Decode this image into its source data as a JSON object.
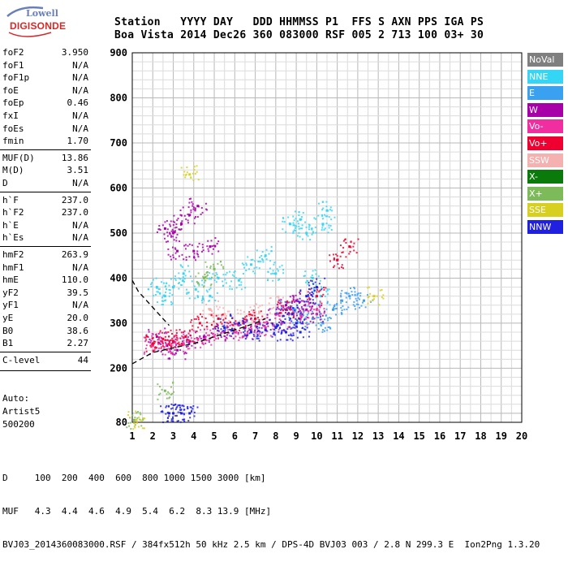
{
  "header": {
    "line1": "Station   YYYY DAY   DDD HHMMSS P1  FFS S AXN PPS IGA PS",
    "line2": "Boa Vista 2014 Dec26 360 083000 RSF 005 2 713 100 03+ 30"
  },
  "logo": {
    "top": "Lowell",
    "bottom": "DIGISONDE"
  },
  "params": [
    {
      "name": "foF2",
      "value": "3.950"
    },
    {
      "name": "foF1",
      "value": "N/A"
    },
    {
      "name": "foF1p",
      "value": "N/A"
    },
    {
      "name": "foE",
      "value": "N/A"
    },
    {
      "name": "foEp",
      "value": "0.46"
    },
    {
      "name": "fxI",
      "value": "N/A"
    },
    {
      "name": "foEs",
      "value": "N/A"
    },
    {
      "name": "fmin",
      "value": "1.70"
    },
    {
      "name": "MUF(D)",
      "value": "13.86"
    },
    {
      "name": "M(D)",
      "value": "3.51"
    },
    {
      "name": "D",
      "value": "N/A"
    },
    {
      "name": "h`F",
      "value": "237.0"
    },
    {
      "name": "h`F2",
      "value": "237.0"
    },
    {
      "name": "h`E",
      "value": "N/A"
    },
    {
      "name": "h`Es",
      "value": "N/A"
    },
    {
      "name": "hmF2",
      "value": "263.9"
    },
    {
      "name": "hmF1",
      "value": "N/A"
    },
    {
      "name": "hmE",
      "value": "110.0"
    },
    {
      "name": "yF2",
      "value": "39.5"
    },
    {
      "name": "yF1",
      "value": "N/A"
    },
    {
      "name": "yE",
      "value": "20.0"
    },
    {
      "name": "B0",
      "value": "38.6"
    },
    {
      "name": "B1",
      "value": "2.27"
    },
    {
      "name": "C-level",
      "value": "44"
    }
  ],
  "autoscaling": {
    "line1": "Auto:",
    "line2": "Artist5",
    "line3": "500200"
  },
  "legend": [
    {
      "label": "NoVal",
      "color": "#7f7f7f"
    },
    {
      "label": "NNE",
      "color": "#35d6f5"
    },
    {
      "label": "E",
      "color": "#3aa0f0"
    },
    {
      "label": "W",
      "color": "#a800a8"
    },
    {
      "label": "Vo-",
      "color": "#f02ea0"
    },
    {
      "label": "Vo+",
      "color": "#f00030"
    },
    {
      "label": "SSW",
      "color": "#f5b0b0"
    },
    {
      "label": "X-",
      "color": "#0a7a0a"
    },
    {
      "label": "X+",
      "color": "#7cba5a"
    },
    {
      "label": "SSE",
      "color": "#d8d020"
    },
    {
      "label": "NNW",
      "color": "#2020e0"
    }
  ],
  "footer": {
    "d_row": "D     100  200  400  600  800 1000 1500 3000 [km]",
    "muf_row": "MUF   4.3  4.4  4.6  4.9  5.4  6.2  8.3 13.9 [MHz]",
    "info_row": "BVJ03_2014360083000.RSF / 384fx512h 50 kHz 2.5 km / DPS-4D BVJ03 003 / 2.8 N 299.3 E  Ion2Png 1.3.20"
  },
  "chart_data": {
    "type": "scatter",
    "title": "",
    "xlabel": "",
    "ylabel": "",
    "x_ticks": [
      1,
      2,
      3,
      4,
      5,
      6,
      7,
      8,
      9,
      10,
      11,
      12,
      13,
      14,
      15,
      16,
      17,
      18,
      19,
      20
    ],
    "y_ticks": [
      80,
      200,
      300,
      400,
      500,
      600,
      700,
      800,
      900
    ],
    "xlim": [
      1,
      20
    ],
    "ylim": [
      80,
      900
    ],
    "grid": true,
    "legend_position": "right",
    "traces": [
      {
        "name": "SSW",
        "color": "#f5b0b0",
        "points": [
          [
            4.8,
            330
          ],
          [
            5.5,
            320
          ],
          [
            6.5,
            310
          ],
          [
            7.2,
            325
          ],
          [
            8.1,
            340
          ]
        ]
      },
      {
        "name": "NNE",
        "color": "#35d6f5",
        "points": [
          [
            2.2,
            380
          ],
          [
            2.6,
            360
          ],
          [
            3.0,
            380
          ],
          [
            3.5,
            410
          ],
          [
            4.1,
            375
          ],
          [
            4.8,
            360
          ],
          [
            5.2,
            400
          ],
          [
            6.2,
            395
          ],
          [
            6.8,
            430
          ],
          [
            7.5,
            450
          ],
          [
            8.0,
            410
          ],
          [
            8.7,
            520
          ],
          [
            9.2,
            530
          ],
          [
            9.5,
            500
          ],
          [
            10.3,
            520
          ],
          [
            10.5,
            550
          ],
          [
            9.8,
            400
          ],
          [
            10.2,
            360
          ]
        ]
      },
      {
        "name": "E",
        "color": "#3aa0f0",
        "points": [
          [
            8.5,
            330
          ],
          [
            9.2,
            320
          ],
          [
            9.8,
            310
          ],
          [
            10.3,
            300
          ],
          [
            10.8,
            330
          ],
          [
            11.2,
            350
          ],
          [
            11.6,
            360
          ],
          [
            12.3,
            350
          ]
        ]
      },
      {
        "name": "W",
        "color": "#a800a8",
        "points": [
          [
            2.2,
            270
          ],
          [
            2.7,
            250
          ],
          [
            3.2,
            240
          ],
          [
            3.8,
            260
          ],
          [
            4.5,
            270
          ],
          [
            5.5,
            280
          ],
          [
            6.5,
            290
          ],
          [
            7.2,
            300
          ],
          [
            8.0,
            320
          ],
          [
            8.5,
            340
          ],
          [
            9.0,
            350
          ],
          [
            9.5,
            330
          ],
          [
            10.0,
            320
          ],
          [
            2.6,
            510
          ],
          [
            3.0,
            500
          ],
          [
            3.4,
            520
          ],
          [
            3.8,
            540
          ],
          [
            4.2,
            560
          ],
          [
            3.2,
            460
          ],
          [
            4.0,
            460
          ],
          [
            4.8,
            470
          ]
        ]
      },
      {
        "name": "Vo-",
        "color": "#f02ea0",
        "points": [
          [
            2.0,
            250
          ],
          [
            2.4,
            260
          ],
          [
            2.9,
            250
          ],
          [
            3.5,
            255
          ],
          [
            4.2,
            265
          ],
          [
            5.0,
            270
          ],
          [
            6.0,
            280
          ],
          [
            6.8,
            285
          ],
          [
            7.5,
            290
          ],
          [
            8.3,
            300
          ],
          [
            9.2,
            310
          ],
          [
            10.0,
            330
          ]
        ]
      },
      {
        "name": "Vo+",
        "color": "#f00030",
        "points": [
          [
            2.0,
            255
          ],
          [
            2.5,
            265
          ],
          [
            3.0,
            260
          ],
          [
            3.6,
            270
          ],
          [
            4.3,
            300
          ],
          [
            5.2,
            310
          ],
          [
            6.2,
            300
          ],
          [
            7.0,
            310
          ],
          [
            8.5,
            330
          ],
          [
            10.0,
            360
          ],
          [
            11.0,
            440
          ],
          [
            11.6,
            470
          ]
        ]
      },
      {
        "name": "NNW",
        "color": "#2020e0",
        "points": [
          [
            5.5,
            290
          ],
          [
            6.2,
            300
          ],
          [
            6.8,
            280
          ],
          [
            7.5,
            285
          ],
          [
            8.0,
            290
          ],
          [
            8.5,
            280
          ],
          [
            9.0,
            300
          ],
          [
            9.5,
            360
          ],
          [
            10.0,
            380
          ],
          [
            9.2,
            280
          ],
          [
            8.8,
            320
          ],
          [
            2.8,
            100
          ],
          [
            3.0,
            100
          ],
          [
            3.4,
            100
          ],
          [
            3.8,
            100
          ]
        ]
      },
      {
        "name": "X+",
        "color": "#7cba5a",
        "points": [
          [
            4.5,
            400
          ],
          [
            5.0,
            420
          ],
          [
            2.6,
            150
          ],
          [
            1.1,
            85
          ]
        ]
      },
      {
        "name": "SSE",
        "color": "#d8d020",
        "points": [
          [
            1.2,
            85
          ],
          [
            12.8,
            360
          ],
          [
            3.8,
            630
          ]
        ]
      }
    ],
    "trace_curves": [
      {
        "name": "leading-edge",
        "style": "dashed",
        "points": [
          [
            1.0,
            210
          ],
          [
            2.0,
            235
          ],
          [
            3.0,
            245
          ],
          [
            4.0,
            255
          ],
          [
            5.0,
            270
          ],
          [
            6.0,
            285
          ],
          [
            7.0,
            300
          ],
          [
            7.5,
            310
          ]
        ]
      },
      {
        "name": "profile",
        "style": "dashed",
        "points": [
          [
            1.0,
            395
          ],
          [
            1.3,
            370
          ],
          [
            1.7,
            350
          ],
          [
            2.0,
            335
          ],
          [
            2.3,
            320
          ],
          [
            2.6,
            305
          ],
          [
            2.8,
            295
          ]
        ]
      }
    ]
  }
}
